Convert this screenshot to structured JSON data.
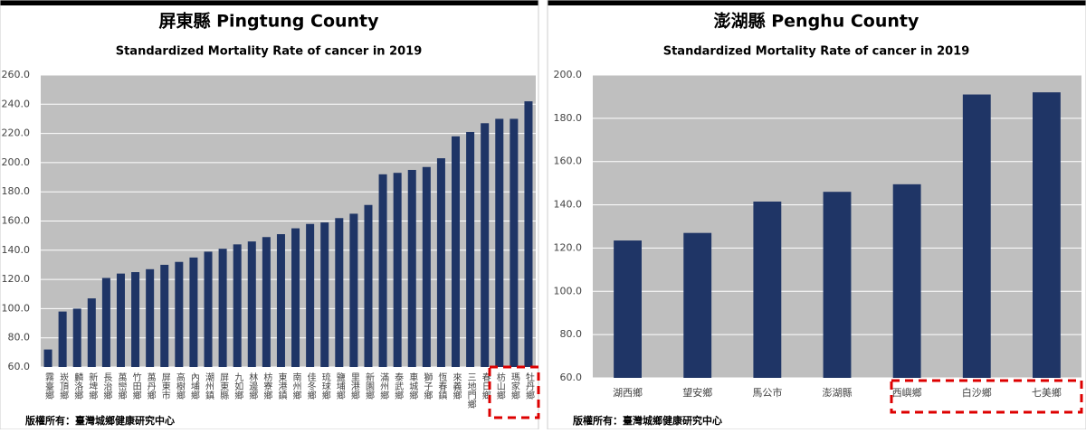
{
  "chart_data": [
    {
      "type": "bar",
      "title": "屏東縣 Pingtung County",
      "subtitle": "Standardized Mortality Rate of cancer in 2019",
      "categories": [
        "霧臺鄉",
        "崁頂鄉",
        "麟洛鄉",
        "新埤鄉",
        "長治鄉",
        "萬巒鄉",
        "竹田鄉",
        "萬丹鄉",
        "屏東市",
        "高樹鄉",
        "內埔鄉",
        "潮州鎮",
        "屏東縣",
        "九如鄉",
        "林邊鄉",
        "枋寮鄉",
        "東港鎮",
        "南州鄉",
        "佳冬鄉",
        "琉球鄉",
        "鹽埔鄉",
        "里港鄉",
        "新園鄉",
        "滿州鄉",
        "泰武鄉",
        "車城鄉",
        "獅子鄉",
        "恆春鎮",
        "來義鄉",
        "三地門鄉",
        "春日鄉",
        "枋山鄉",
        "瑪家鄉",
        "牡丹鄉"
      ],
      "values": [
        72,
        98,
        100,
        107,
        121,
        124,
        125,
        127,
        130,
        132,
        135,
        139,
        141,
        144,
        146,
        149,
        151,
        155,
        158,
        159,
        162,
        165,
        171,
        192,
        193,
        195,
        197,
        203,
        218,
        221,
        227,
        230,
        230,
        242
      ],
      "color": "#1f3566",
      "ylim": [
        60,
        260
      ],
      "yticks": [
        {
          "value": 60,
          "label": "60.0"
        },
        {
          "value": 80,
          "label": "80.0"
        },
        {
          "value": 100,
          "label": "100.0"
        },
        {
          "value": 120,
          "label": "120.0"
        },
        {
          "value": 140,
          "label": "140.0"
        },
        {
          "value": 160,
          "label": "160.0"
        },
        {
          "value": 180,
          "label": "180.0"
        },
        {
          "value": 200,
          "label": "200.0"
        },
        {
          "value": 220,
          "label": "220.0"
        },
        {
          "value": 240,
          "label": "240.0"
        },
        {
          "value": 260,
          "label": "260.0"
        }
      ],
      "grid": true,
      "source": "版權所有：臺灣城鄉健康研究中心"
    },
    {
      "type": "bar",
      "title": "澎湖縣 Penghu County",
      "subtitle": "Standardized Mortality Rate of cancer in 2019",
      "categories": [
        "湖西鄉",
        "望安鄉",
        "馬公市",
        "澎湖縣",
        "西嶼鄉",
        "白沙鄉",
        "七美鄉"
      ],
      "values": [
        123.5,
        127,
        141.5,
        146,
        149.5,
        191,
        192
      ],
      "color": "#1f3566",
      "ylim": [
        60,
        200
      ],
      "yticks": [
        {
          "value": 60,
          "label": "60.0"
        },
        {
          "value": 80,
          "label": "80.0"
        },
        {
          "value": 100,
          "label": "100.0"
        },
        {
          "value": 120,
          "label": "120.0"
        },
        {
          "value": 140,
          "label": "140.0"
        },
        {
          "value": 160,
          "label": "160.0"
        },
        {
          "value": 180,
          "label": "180.0"
        },
        {
          "value": 200,
          "label": "200.0"
        }
      ],
      "grid": true,
      "source": "版權所有：臺灣城鄉健康研究中心"
    }
  ]
}
